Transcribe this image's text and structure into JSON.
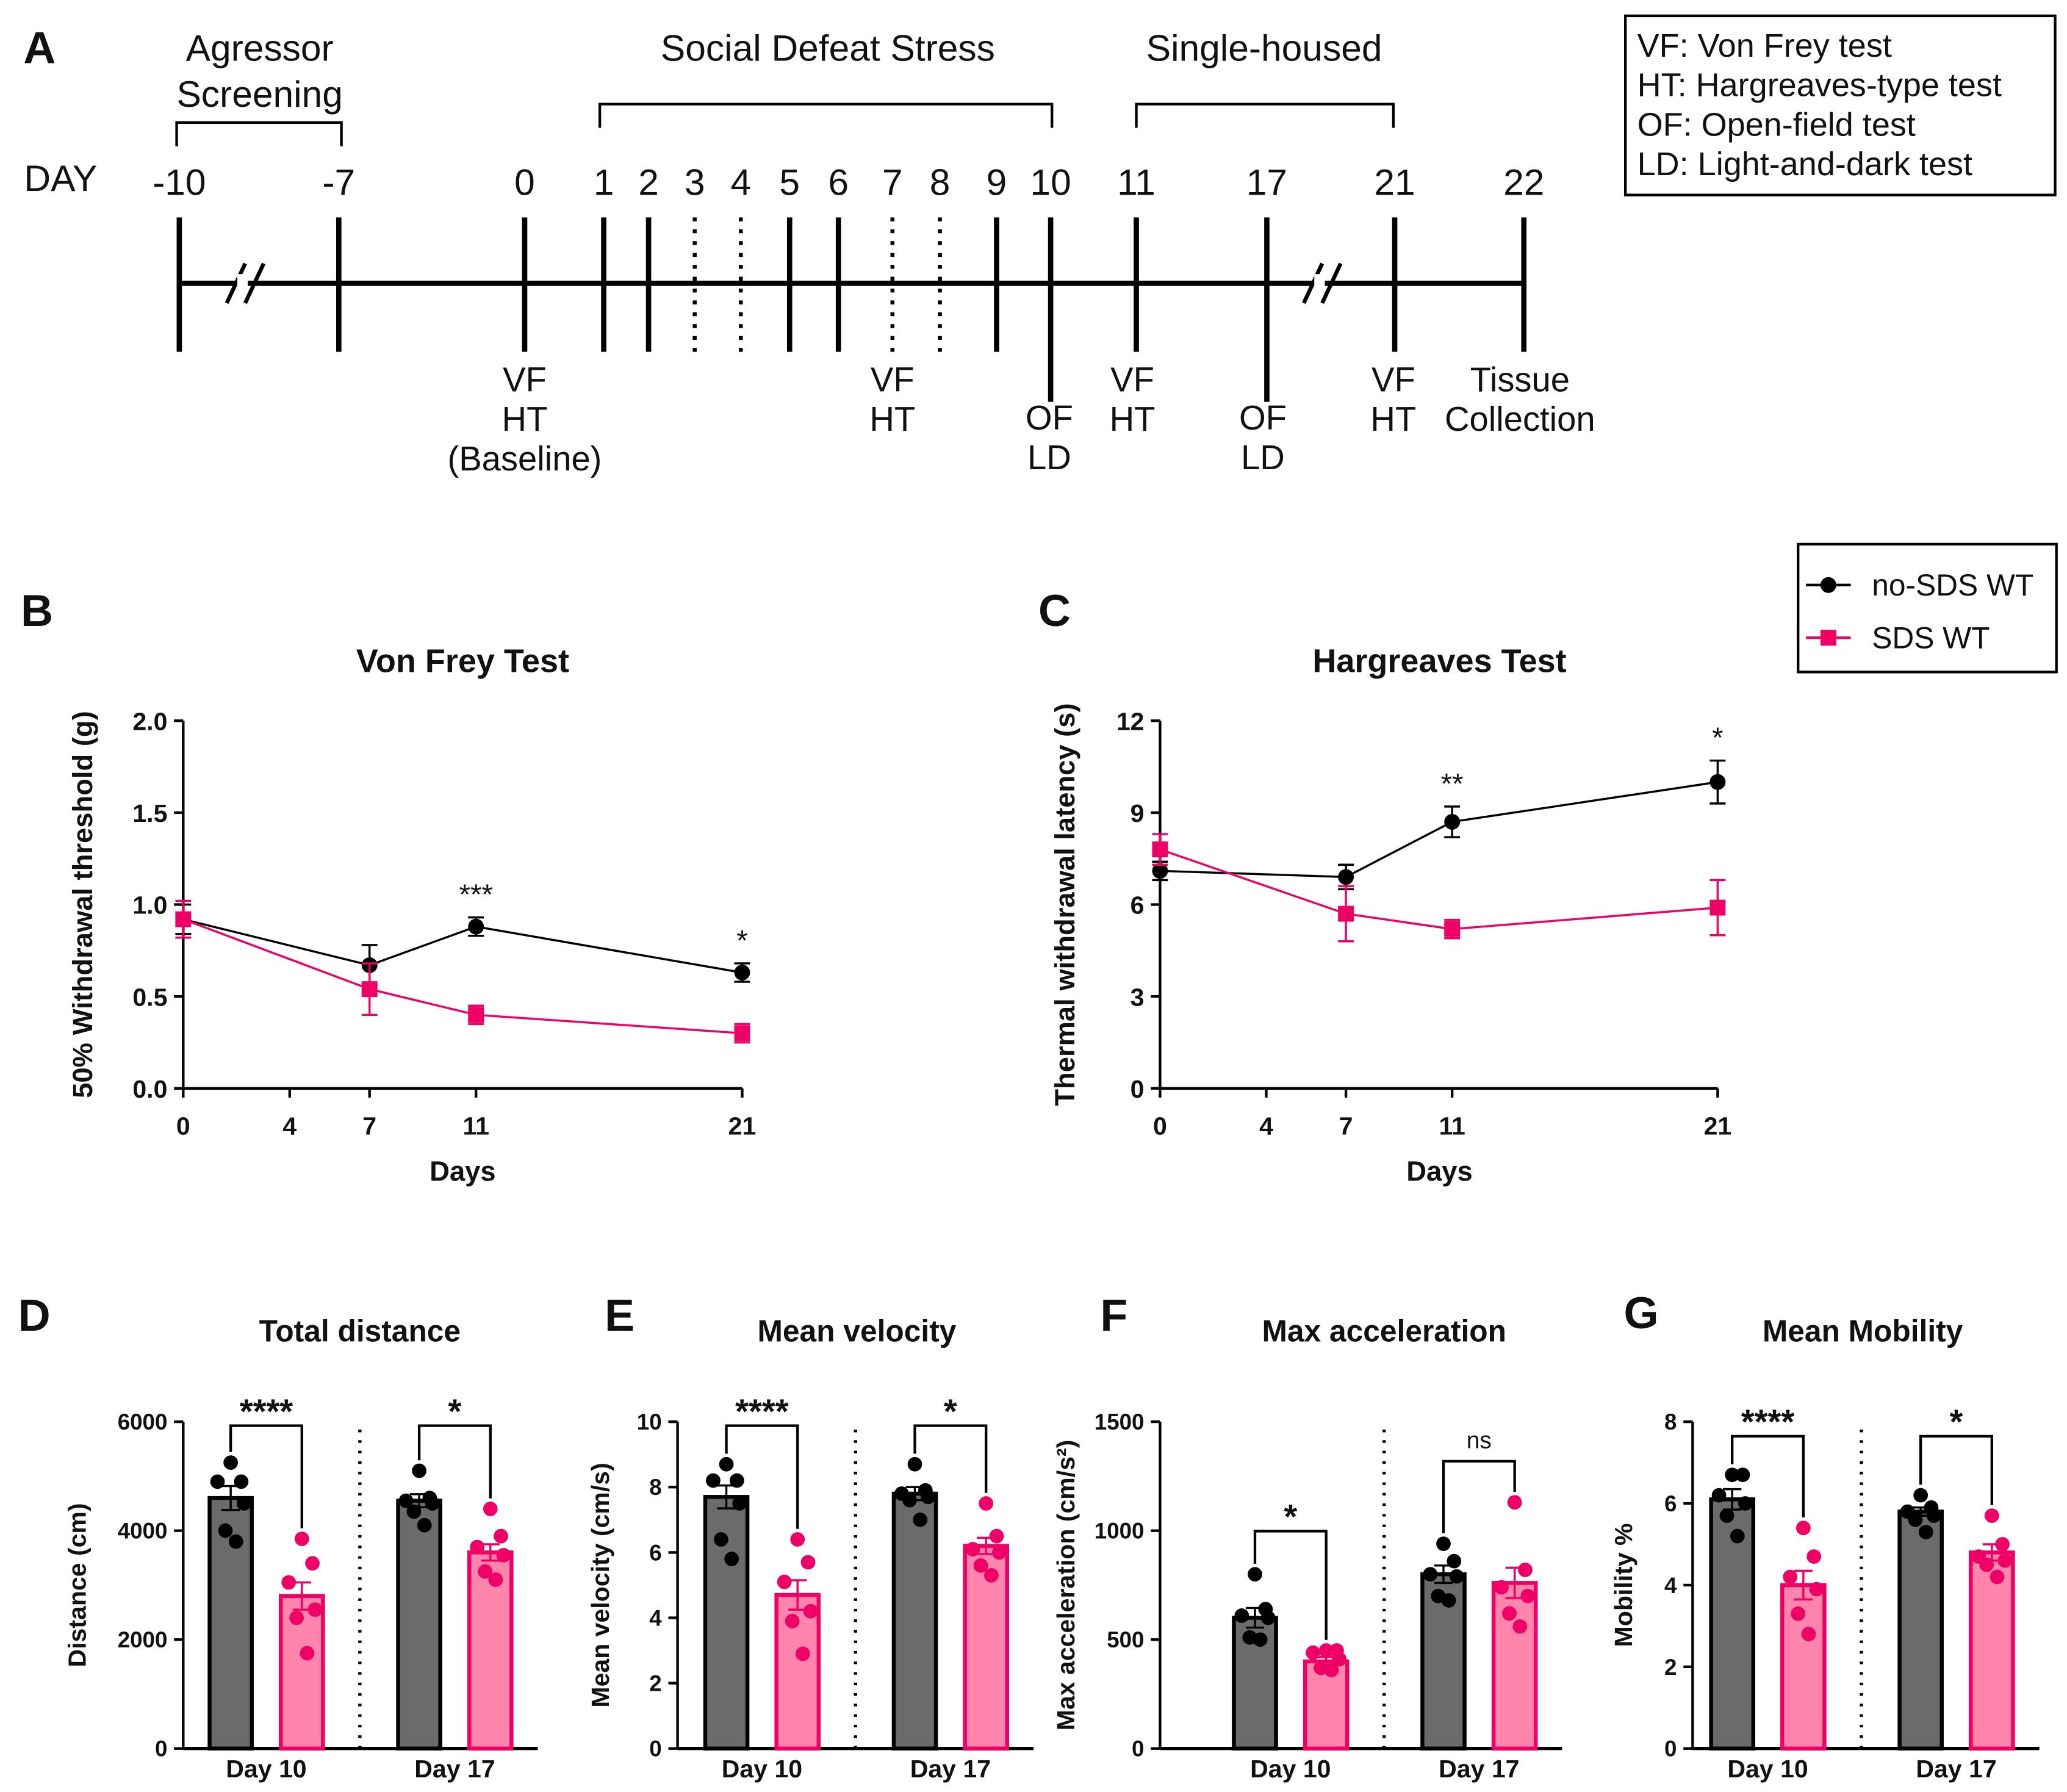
{
  "panel_labels": [
    "A",
    "B",
    "C",
    "D",
    "E",
    "F",
    "G"
  ],
  "timeline": {
    "day_label": "DAY",
    "days": [
      "-10",
      "-7",
      "0",
      "1",
      "2",
      "3",
      "4",
      "5",
      "6",
      "7",
      "8",
      "9",
      "10",
      "11",
      "17",
      "21",
      "22"
    ],
    "dotted_days": [
      "3",
      "4",
      "7",
      "8"
    ],
    "periods": [
      "Agressor",
      "Screening",
      "Social Defeat Stress",
      "Single-housed"
    ],
    "events": {
      "day0": [
        "VF",
        "HT",
        "(Baseline)"
      ],
      "day7": [
        "VF",
        "HT"
      ],
      "day10": [
        "OF",
        "LD"
      ],
      "day11": [
        "VF",
        "HT"
      ],
      "day17": [
        "OF",
        "LD"
      ],
      "day21": [
        "VF",
        "HT"
      ],
      "day22": [
        "Tissue",
        "Collection"
      ]
    },
    "abbreviations": [
      "VF: Von Frey test",
      "HT: Hargreaves-type test",
      "OF: Open-field test",
      "LD: Light-and-dark test"
    ]
  },
  "legend": {
    "series": [
      "no-SDS WT",
      "SDS WT"
    ]
  },
  "colors": {
    "control": "#000000",
    "sds": "#ee0066",
    "control_bar": "#6b6b6b",
    "sds_bar": "#ff85ad"
  },
  "chart_data": [
    {
      "type": "line",
      "id": "B",
      "title": "Von Frey Test",
      "xlabel": "Days",
      "ylabel": "50% Withdrawal threshold (g)",
      "x": [
        0,
        7,
        11,
        21
      ],
      "xticks": [
        "0",
        "4",
        "7",
        "11",
        "21"
      ],
      "xtick_values": [
        0,
        4,
        7,
        11,
        21
      ],
      "yticks": [
        "0.0",
        "0.5",
        "1.0",
        "1.5",
        "2.0"
      ],
      "ylim": [
        0,
        2
      ],
      "xlim": [
        0,
        21
      ],
      "series": [
        {
          "name": "no-SDS WT",
          "values": [
            0.92,
            0.67,
            0.88,
            0.63
          ],
          "sem": [
            0.08,
            0.11,
            0.05,
            0.05
          ]
        },
        {
          "name": "SDS WT",
          "values": [
            0.92,
            0.54,
            0.4,
            0.3
          ],
          "sem": [
            0.1,
            0.14,
            0.05,
            0.05
          ]
        }
      ],
      "annotations": [
        {
          "x": 11,
          "text": "***"
        },
        {
          "x": 21,
          "text": "*"
        }
      ]
    },
    {
      "type": "line",
      "id": "C",
      "title": "Hargreaves Test",
      "xlabel": "Days",
      "ylabel": "Thermal withdrawal latency (s)",
      "x": [
        0,
        7,
        11,
        21
      ],
      "xticks": [
        "0",
        "4",
        "7",
        "11",
        "21"
      ],
      "xtick_values": [
        0,
        4,
        7,
        11,
        21
      ],
      "yticks": [
        "0",
        "3",
        "6",
        "9",
        "12"
      ],
      "ylim": [
        0,
        12
      ],
      "xlim": [
        0,
        21
      ],
      "series": [
        {
          "name": "no-SDS WT",
          "values": [
            7.1,
            6.9,
            8.7,
            10.0
          ],
          "sem": [
            0.3,
            0.4,
            0.5,
            0.7
          ]
        },
        {
          "name": "SDS WT",
          "values": [
            7.8,
            5.7,
            5.2,
            5.9
          ],
          "sem": [
            0.5,
            0.9,
            0.3,
            0.9
          ]
        }
      ],
      "annotations": [
        {
          "x": 11,
          "text": "**"
        },
        {
          "x": 21,
          "text": "*"
        }
      ]
    },
    {
      "type": "bar",
      "id": "D",
      "title": "Total distance",
      "ylabel": "Distance (cm)",
      "categories": [
        "Day 10",
        "Day 17"
      ],
      "ylim": [
        0,
        6000
      ],
      "yticks": [
        "0",
        "2000",
        "4000",
        "6000"
      ],
      "series": [
        {
          "name": "no-SDS WT",
          "values": [
            4600,
            4550
          ],
          "sem": [
            220,
            120
          ],
          "points": [
            [
              5250,
              4900,
              4900,
              4500,
              4000,
              3800
            ],
            [
              5100,
              4600,
              4550,
              4500,
              4350,
              4100
            ]
          ]
        },
        {
          "name": "SDS WT",
          "values": [
            2800,
            3600
          ],
          "sem": [
            250,
            150
          ],
          "points": [
            [
              3850,
              3400,
              3050,
              2550,
              2400,
              1750
            ],
            [
              4400,
              3900,
              3700,
              3550,
              3250,
              3100
            ]
          ]
        }
      ],
      "significance": [
        "****",
        "*"
      ]
    },
    {
      "type": "bar",
      "id": "E",
      "title": "Mean velocity",
      "ylabel": "Mean velocity (cm/s)",
      "categories": [
        "Day 10",
        "Day 17"
      ],
      "ylim": [
        0,
        10
      ],
      "yticks": [
        "0",
        "2",
        "4",
        "6",
        "8",
        "10"
      ],
      "series": [
        {
          "name": "no-SDS WT",
          "values": [
            7.7,
            7.8
          ],
          "sem": [
            0.35,
            0.2
          ],
          "points": [
            [
              8.7,
              8.2,
              8.2,
              7.5,
              6.4,
              5.8
            ],
            [
              8.7,
              7.9,
              7.8,
              7.7,
              7.6,
              7.0
            ]
          ]
        },
        {
          "name": "SDS WT",
          "values": [
            4.7,
            6.2
          ],
          "sem": [
            0.45,
            0.25
          ],
          "points": [
            [
              6.4,
              5.7,
              5.1,
              4.2,
              3.9,
              2.9
            ],
            [
              7.5,
              6.5,
              6.1,
              6.0,
              5.6,
              5.3
            ]
          ]
        }
      ],
      "significance": [
        "****",
        "*"
      ]
    },
    {
      "type": "bar",
      "id": "F",
      "title": "Max acceleration",
      "ylabel": "Max acceleration (cm/s²)",
      "categories": [
        "Day 10",
        "Day 17"
      ],
      "ylim": [
        0,
        1500
      ],
      "yticks": [
        "0",
        "500",
        "1000",
        "1500"
      ],
      "series": [
        {
          "name": "no-SDS WT",
          "values": [
            600,
            800
          ],
          "sem": [
            45,
            40
          ],
          "points": [
            [
              800,
              640,
              610,
              600,
              510,
              500
            ],
            [
              940,
              860,
              800,
              790,
              700,
              680
            ]
          ]
        },
        {
          "name": "SDS WT",
          "values": [
            400,
            760
          ],
          "sem": [
            20,
            70
          ],
          "points": [
            [
              450,
              450,
              440,
              410,
              370,
              360
            ],
            [
              1130,
              820,
              740,
              700,
              620,
              560
            ]
          ]
        }
      ],
      "significance": [
        "*",
        "ns"
      ]
    },
    {
      "type": "bar",
      "id": "G",
      "title": "Mean Mobility",
      "ylabel": "Mobility  %",
      "categories": [
        "Day 10",
        "Day 17"
      ],
      "ylim": [
        0,
        8
      ],
      "yticks": [
        "0",
        "2",
        "4",
        "6",
        "8"
      ],
      "series": [
        {
          "name": "no-SDS WT",
          "values": [
            6.1,
            5.8
          ],
          "sem": [
            0.25,
            0.1
          ],
          "points": [
            [
              6.7,
              6.7,
              6.2,
              6.0,
              5.7,
              5.2
            ],
            [
              6.2,
              5.9,
              5.8,
              5.7,
              5.6,
              5.3
            ]
          ]
        },
        {
          "name": "SDS WT",
          "values": [
            4.0,
            4.8
          ],
          "sem": [
            0.35,
            0.2
          ],
          "points": [
            [
              5.4,
              4.7,
              4.2,
              3.9,
              3.3,
              2.8
            ],
            [
              5.7,
              5.0,
              4.7,
              4.6,
              4.5,
              4.2
            ]
          ]
        }
      ],
      "significance": [
        "****",
        "*"
      ]
    }
  ]
}
